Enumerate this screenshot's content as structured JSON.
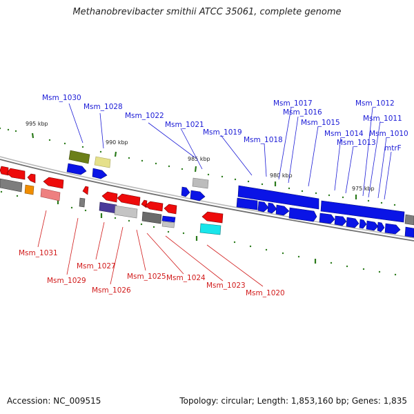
{
  "title": "Methanobrevibacter smithii ATCC 35061, complete genome",
  "footer": {
    "accession": "Accession: NC_009515",
    "topology": "Topology: circular; Length: 1,853,160 bp; Genes: 1,835"
  },
  "colors": {
    "forward_label": "#1a1ad6",
    "reverse_label": "#d11a1a",
    "backbone": "#808080",
    "tick": "#2a7a1a",
    "blue": "#0a14e6",
    "red": "#ee0b0b",
    "gray": "#7d7d7d"
  },
  "scale": {
    "ticks": [
      {
        "label": "995 kbp"
      },
      {
        "label": "990 kbp"
      },
      {
        "label": "985 kbp"
      },
      {
        "label": "980 kbp"
      },
      {
        "label": "975 kbp"
      }
    ]
  },
  "forward_labels": [
    {
      "label": "Msm_1030"
    },
    {
      "label": "Msm_1028"
    },
    {
      "label": "Msm_1022"
    },
    {
      "label": "Msm_1021"
    },
    {
      "label": "Msm_1019"
    },
    {
      "label": "Msm_1018"
    },
    {
      "label": "Msm_1017"
    },
    {
      "label": "Msm_1016"
    },
    {
      "label": "Msm_1015"
    },
    {
      "label": "Msm_1014"
    },
    {
      "label": "Msm_1013"
    },
    {
      "label": "Msm_1012"
    },
    {
      "label": "Msm_1011"
    },
    {
      "label": "Msm_1010"
    },
    {
      "label": "mtrF"
    }
  ],
  "reverse_labels": [
    {
      "label": "Msm_1031"
    },
    {
      "label": "Msm_1029"
    },
    {
      "label": "Msm_1027"
    },
    {
      "label": "Msm_1026"
    },
    {
      "label": "Msm_1025"
    },
    {
      "label": "Msm_1024"
    },
    {
      "label": "Msm_1023"
    },
    {
      "label": "Msm_1020"
    }
  ]
}
